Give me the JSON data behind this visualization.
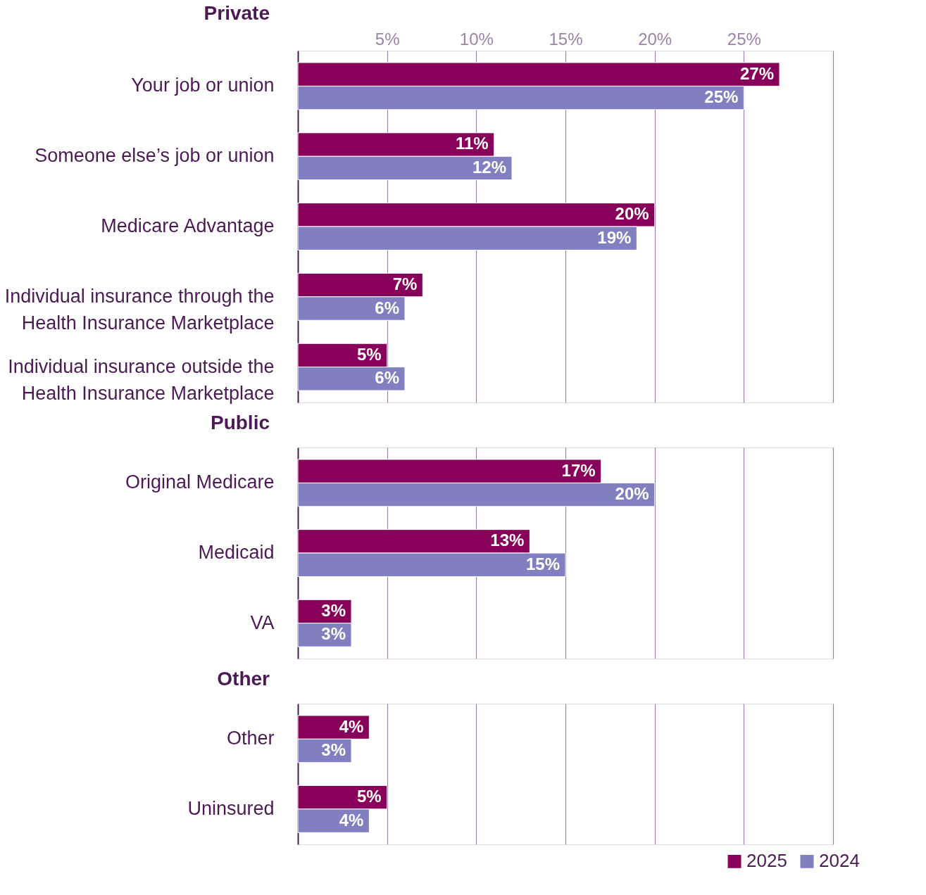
{
  "chart_data": [
    {
      "type": "bar",
      "orientation": "horizontal",
      "title": "Private",
      "grid": "x",
      "legend": "bottom right",
      "categories": [
        "Your job or union",
        "Someone else’s job or union",
        "Medicare Advantage",
        "Individual insurance through the Health Insurance Marketplace",
        "Individual insurance outside the Health Insurance Marketplace"
      ],
      "series": [
        {
          "name": "2025",
          "color": "#87005a",
          "values": [
            27,
            11,
            20,
            7,
            5
          ],
          "value_labels": [
            "27%",
            "11%",
            "20%",
            "7%",
            "5%"
          ]
        },
        {
          "name": "2024",
          "color": "#8080c0",
          "values": [
            25,
            12,
            19,
            6,
            6
          ],
          "value_labels": [
            "25%",
            "12%",
            "19%",
            "6%",
            "6%"
          ]
        }
      ],
      "xlim": [
        0,
        30
      ],
      "xticks": [
        {
          "value": 5,
          "label": "5%"
        },
        {
          "value": 10,
          "label": "10%"
        },
        {
          "value": 15,
          "label": "15%"
        },
        {
          "value": 20,
          "label": "20%"
        },
        {
          "value": 25,
          "label": "25%"
        },
        {
          "value": 30,
          "label": null
        }
      ]
    },
    {
      "type": "bar",
      "orientation": "horizontal",
      "title": "Public",
      "grid": "x",
      "tick_labels": "y",
      "categories": [
        "Original Medicare",
        "Medicaid",
        "VA"
      ],
      "series": [
        {
          "name": "2025",
          "color": "#87005a",
          "values": [
            17,
            13,
            3
          ],
          "value_labels": [
            "17%",
            "13%",
            "3%"
          ]
        },
        {
          "name": "2024",
          "color": "#8080c0",
          "values": [
            20,
            15,
            3
          ],
          "value_labels": [
            "20%",
            "15%",
            "3%"
          ]
        }
      ],
      "xlim": [
        0,
        30
      ],
      "xticks": [
        5,
        10,
        15,
        20,
        25,
        30
      ]
    },
    {
      "type": "bar",
      "orientation": "horizontal",
      "title": "Other",
      "grid": "x",
      "tick_labels": "y",
      "categories": [
        "Other",
        "Uninsured"
      ],
      "series": [
        {
          "name": "2025",
          "color": "#87005a",
          "values": [
            4,
            5
          ],
          "value_labels": [
            "4%",
            "5%"
          ]
        },
        {
          "name": "2024",
          "color": "#8080c0",
          "values": [
            3,
            4
          ],
          "value_labels": [
            "3%",
            "4%"
          ]
        }
      ],
      "xlim": [
        0,
        30
      ],
      "xticks": [
        5,
        10,
        15,
        20,
        25,
        30
      ]
    }
  ]
}
